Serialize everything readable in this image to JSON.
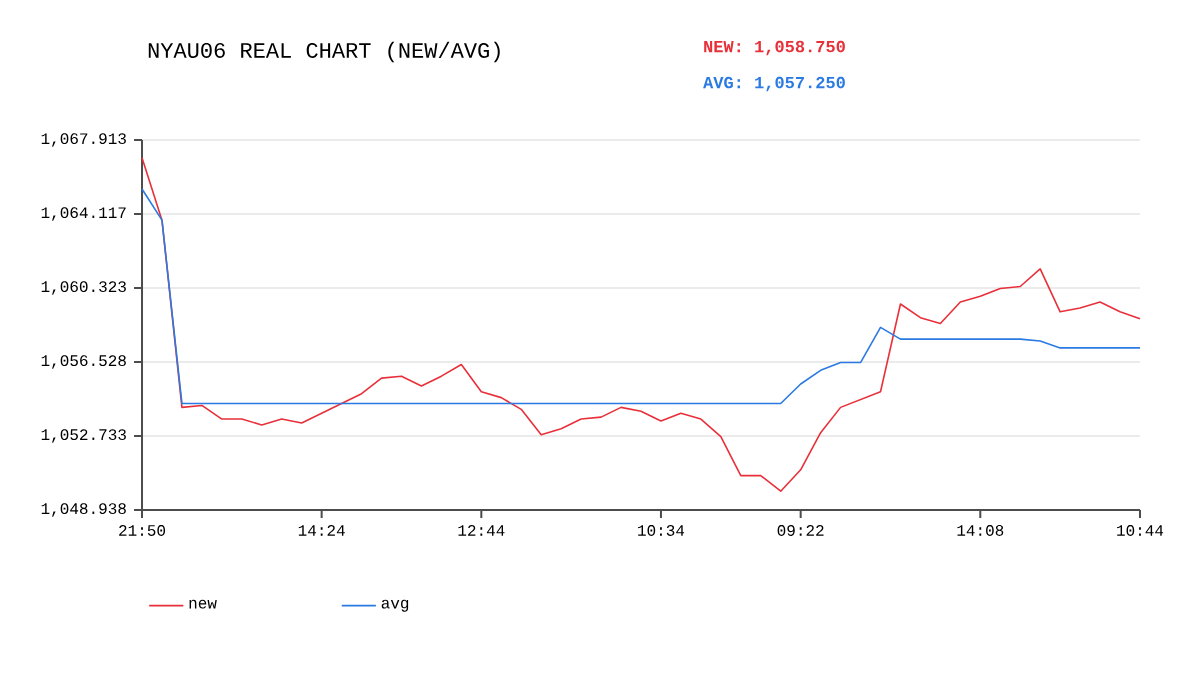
{
  "chart_data": {
    "type": "line",
    "title": "NYAU06 REAL CHART (NEW/AVG)",
    "annotations": [
      "NEW: 1,058.750",
      "AVG: 1,057.250"
    ],
    "categories": [
      "21:50",
      null,
      null,
      null,
      null,
      null,
      null,
      null,
      null,
      "14:24",
      null,
      null,
      null,
      null,
      null,
      null,
      null,
      "12:44",
      null,
      null,
      null,
      null,
      null,
      null,
      null,
      null,
      "10:34",
      null,
      null,
      null,
      null,
      null,
      null,
      "09:22",
      null,
      null,
      null,
      null,
      null,
      null,
      null,
      null,
      "14:08",
      null,
      null,
      null,
      null,
      null,
      null,
      null,
      "10:44"
    ],
    "series": [
      {
        "name": "new",
        "color": "#e8303a",
        "values": [
          1067.0,
          1063.8,
          1054.2,
          1054.3,
          1053.6,
          1053.6,
          1053.3,
          1053.6,
          1053.4,
          1053.9,
          1054.4,
          1054.9,
          1055.7,
          1055.8,
          1055.3,
          1055.8,
          1056.4,
          1055.0,
          1054.7,
          1054.1,
          1052.8,
          1053.1,
          1053.6,
          1053.7,
          1054.2,
          1054.0,
          1053.5,
          1053.9,
          1053.6,
          1052.7,
          1050.7,
          1050.7,
          1049.9,
          1051.0,
          1052.9,
          1054.2,
          1054.6,
          1055.0,
          1059.5,
          1058.8,
          1058.5,
          1059.6,
          1059.9,
          1060.3,
          1060.4,
          1061.3,
          1059.1,
          1059.3,
          1059.6,
          1059.1,
          1058.75
        ]
      },
      {
        "name": "avg",
        "color": "#2a7ae2",
        "values": [
          1065.4,
          1063.8,
          1054.4,
          1054.4,
          1054.4,
          1054.4,
          1054.4,
          1054.4,
          1054.4,
          1054.4,
          1054.4,
          1054.4,
          1054.4,
          1054.4,
          1054.4,
          1054.4,
          1054.4,
          1054.4,
          1054.4,
          1054.4,
          1054.4,
          1054.4,
          1054.4,
          1054.4,
          1054.4,
          1054.4,
          1054.4,
          1054.4,
          1054.4,
          1054.4,
          1054.4,
          1054.4,
          1054.4,
          1055.4,
          1056.1,
          1056.5,
          1056.5,
          1058.3,
          1057.7,
          1057.7,
          1057.7,
          1057.7,
          1057.7,
          1057.7,
          1057.7,
          1057.6,
          1057.25,
          1057.25,
          1057.25,
          1057.25,
          1057.25
        ]
      }
    ],
    "ylim": [
      1048.938,
      1067.913
    ],
    "yticks": [
      {
        "value": 1048.938,
        "label": "1,048.938"
      },
      {
        "value": 1052.733,
        "label": "1,052.733"
      },
      {
        "value": 1056.528,
        "label": "1,056.528"
      },
      {
        "value": 1060.323,
        "label": "1,060.323"
      },
      {
        "value": 1064.117,
        "label": "1,064.117"
      },
      {
        "value": 1067.913,
        "label": "1,067.913"
      }
    ],
    "grid": "y",
    "legend": "bottom",
    "marker": "none",
    "line_style": "solid"
  }
}
